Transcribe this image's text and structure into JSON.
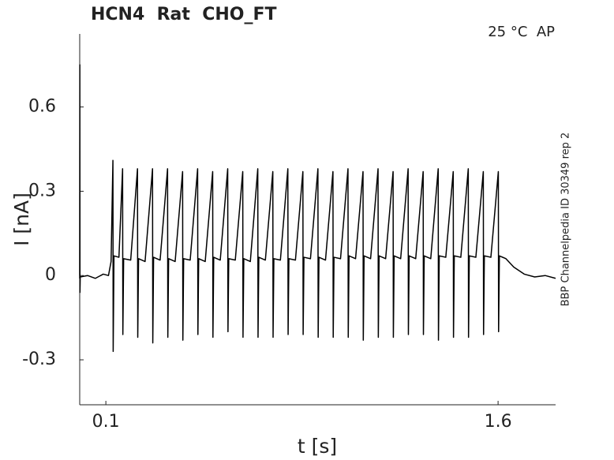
{
  "chart_data": {
    "type": "line",
    "title": "HCN4  Rat  CHO_FT",
    "annotation": "25 °C  AP",
    "side_label": "BBP Channelpedia ID 30349 rep 2",
    "x_label": "t [s]",
    "y_label": "I [nA]",
    "color": "#000000",
    "xlim": [
      0,
      1.82
    ],
    "xticks": [
      0.1,
      1.6
    ],
    "ylim": [
      -0.46,
      0.86
    ],
    "yticks": [
      -0.3,
      0,
      0.3,
      0.6
    ],
    "x": [
      0,
      0.0005,
      0.001,
      0.002,
      0.03,
      0.06,
      0.09,
      0.11,
      0.12,
      0.127,
      0.128,
      0.131,
      0.15,
      0.164,
      0.165,
      0.168,
      0.195,
      0.221,
      0.222,
      0.225,
      0.25,
      0.2785,
      0.2795,
      0.2825,
      0.3075,
      0.336,
      0.337,
      0.34,
      0.365,
      0.3935,
      0.3945,
      0.3975,
      0.4225,
      0.451,
      0.452,
      0.455,
      0.48,
      0.5085,
      0.5095,
      0.5125,
      0.5375,
      0.566,
      0.567,
      0.57,
      0.595,
      0.6235,
      0.6245,
      0.6275,
      0.6525,
      0.681,
      0.682,
      0.685,
      0.71,
      0.7385,
      0.7395,
      0.7425,
      0.7675,
      0.796,
      0.797,
      0.8,
      0.825,
      0.8535,
      0.8545,
      0.8575,
      0.8825,
      0.911,
      0.912,
      0.915,
      0.94,
      0.9685,
      0.9695,
      0.9725,
      0.9975,
      1.026,
      1.027,
      1.03,
      1.055,
      1.0835,
      1.0845,
      1.0875,
      1.1125,
      1.141,
      1.142,
      1.145,
      1.17,
      1.1985,
      1.1995,
      1.2025,
      1.2275,
      1.256,
      1.257,
      1.26,
      1.285,
      1.3135,
      1.3145,
      1.3175,
      1.3425,
      1.371,
      1.372,
      1.375,
      1.4,
      1.4285,
      1.4295,
      1.4325,
      1.4575,
      1.486,
      1.487,
      1.49,
      1.515,
      1.5435,
      1.5445,
      1.5475,
      1.5725,
      1.601,
      1.602,
      1.605,
      1.63,
      1.66,
      1.7,
      1.74,
      1.78,
      1.82
    ],
    "values": [
      -0.01,
      0.75,
      -0.06,
      -0.005,
      0.0,
      -0.01,
      0.005,
      0.0,
      0.05,
      0.41,
      -0.27,
      0.07,
      0.065,
      0.38,
      -0.21,
      0.06,
      0.055,
      0.38,
      -0.22,
      0.06,
      0.05,
      0.38,
      -0.24,
      0.065,
      0.055,
      0.38,
      -0.22,
      0.06,
      0.05,
      0.37,
      -0.23,
      0.06,
      0.055,
      0.38,
      -0.21,
      0.06,
      0.05,
      0.37,
      -0.22,
      0.065,
      0.055,
      0.38,
      -0.2,
      0.06,
      0.055,
      0.37,
      -0.22,
      0.06,
      0.05,
      0.38,
      -0.22,
      0.065,
      0.055,
      0.37,
      -0.22,
      0.06,
      0.055,
      0.38,
      -0.21,
      0.06,
      0.055,
      0.37,
      -0.21,
      0.065,
      0.06,
      0.38,
      -0.22,
      0.065,
      0.055,
      0.37,
      -0.22,
      0.065,
      0.06,
      0.38,
      -0.22,
      0.07,
      0.06,
      0.37,
      -0.23,
      0.07,
      0.06,
      0.38,
      -0.22,
      0.07,
      0.06,
      0.37,
      -0.22,
      0.07,
      0.06,
      0.38,
      -0.21,
      0.07,
      0.06,
      0.37,
      -0.21,
      0.07,
      0.06,
      0.38,
      -0.23,
      0.07,
      0.065,
      0.37,
      -0.22,
      0.07,
      0.065,
      0.38,
      -0.22,
      0.07,
      0.065,
      0.37,
      -0.21,
      0.07,
      0.065,
      0.37,
      -0.2,
      0.07,
      0.06,
      0.03,
      0.005,
      -0.005,
      0.0,
      -0.01
    ]
  }
}
